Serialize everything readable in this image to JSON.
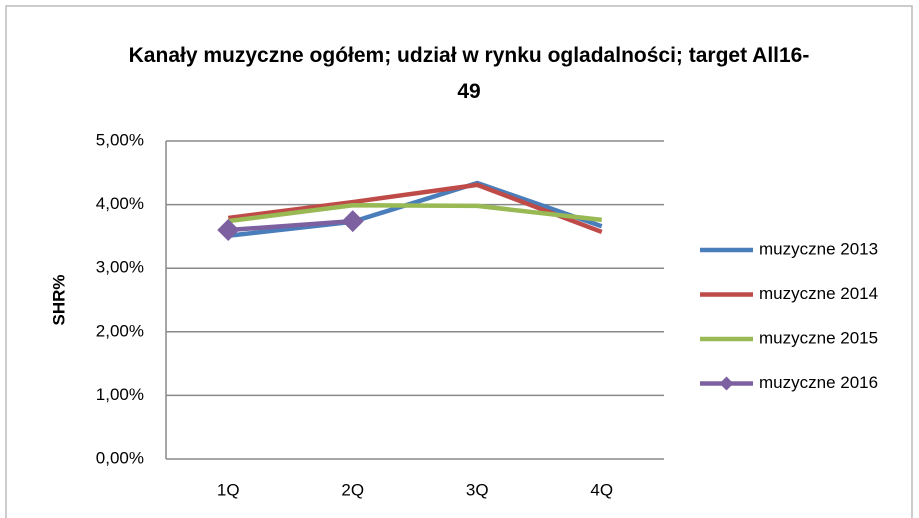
{
  "chart_data": {
    "type": "line",
    "title": "Kanały muzyczne ogółem; udział w rynku ogladalności; target All16-49",
    "y_label": "SHR%",
    "categories": [
      "1Q",
      "2Q",
      "3Q",
      "4Q"
    ],
    "series": [
      {
        "name": "muzyczne 2013",
        "color": "#4a7ebb",
        "values": [
          3.51,
          3.73,
          4.34,
          3.66
        ]
      },
      {
        "name": "muzyczne 2014",
        "color": "#be4b48",
        "values": [
          3.79,
          4.04,
          4.31,
          3.57
        ]
      },
      {
        "name": "muzyczne 2015",
        "color": "#98b954",
        "values": [
          3.74,
          3.99,
          3.98,
          3.76
        ]
      },
      {
        "name": "muzyczne 2016",
        "color": "#7d60a0",
        "values": [
          3.6,
          3.74,
          null,
          null
        ],
        "marker": "diamond"
      }
    ],
    "ylim": [
      0,
      5
    ],
    "yticks": [
      {
        "value": 0,
        "label": "0,00%"
      },
      {
        "value": 1,
        "label": "1,00%"
      },
      {
        "value": 2,
        "label": "2,00%"
      },
      {
        "value": 3,
        "label": "3,00%"
      },
      {
        "value": 4,
        "label": "4,00%"
      },
      {
        "value": 5,
        "label": "5,00%"
      }
    ],
    "grid": true,
    "legend": "right"
  }
}
